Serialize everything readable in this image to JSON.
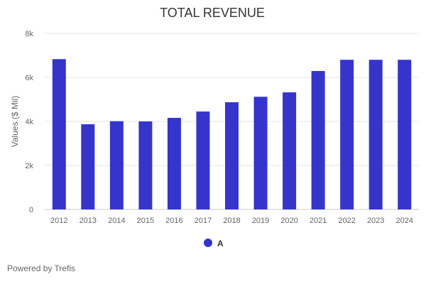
{
  "chart_data": {
    "type": "bar",
    "title": "TOTAL REVENUE",
    "xlabel": "",
    "ylabel": "Values ($ Mil)",
    "ylim": [
      0,
      8000
    ],
    "y_ticks": [
      {
        "value": 0,
        "label": "0"
      },
      {
        "value": 2000,
        "label": "2k"
      },
      {
        "value": 4000,
        "label": "4k"
      },
      {
        "value": 6000,
        "label": "6k"
      },
      {
        "value": 8000,
        "label": "8k"
      }
    ],
    "grid": true,
    "categories": [
      "2012",
      "2013",
      "2014",
      "2015",
      "2016",
      "2017",
      "2018",
      "2019",
      "2020",
      "2021",
      "2022",
      "2023",
      "2024"
    ],
    "series": [
      {
        "name": "A",
        "color": "#3535cc",
        "values": [
          6830,
          3870,
          4010,
          4000,
          4160,
          4450,
          4870,
          5120,
          5320,
          6290,
          6800,
          6800,
          6800
        ]
      }
    ],
    "legend_position": "bottom-center"
  },
  "footer": {
    "text": "Powered by Trefis"
  }
}
